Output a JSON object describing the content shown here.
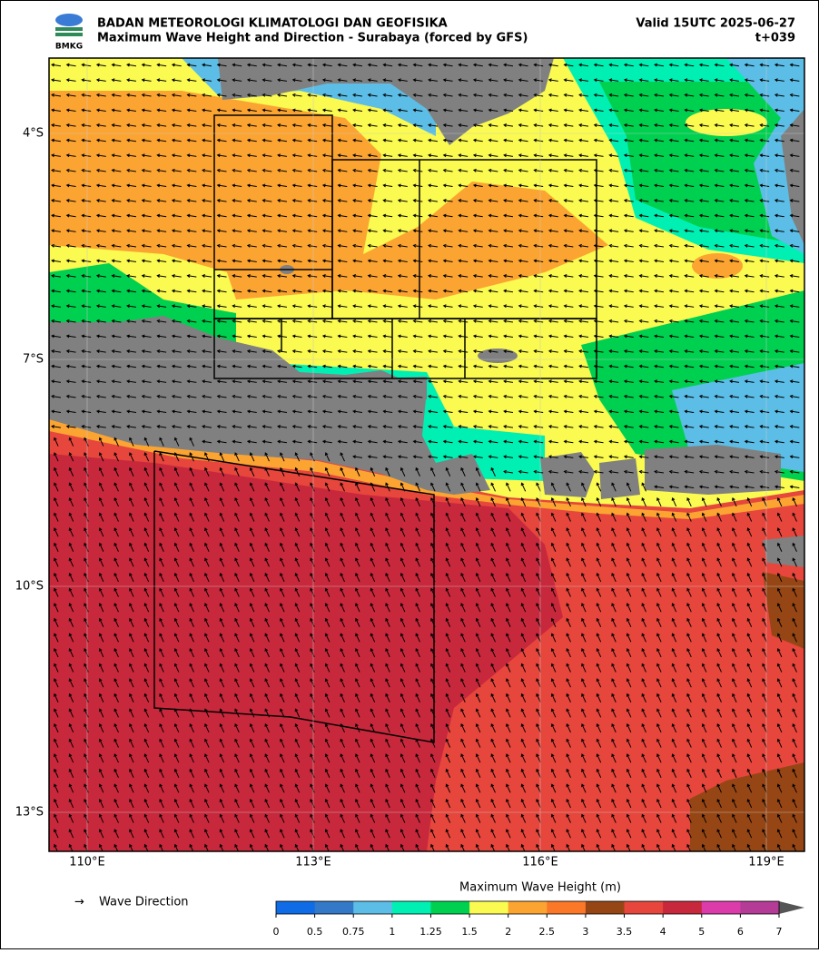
{
  "header": {
    "agency": "BADAN METEOROLOGI KLIMATOLOGI DAN GEOFISIKA",
    "title": "Maximum Wave Height and Direction - Surabaya (forced by GFS)",
    "valid": "Valid 15UTC 2025-06-27",
    "lead": "t+039",
    "logo": "BMKG"
  },
  "map": {
    "lat_labels": [
      "4°S",
      "7°S",
      "10°S",
      "13°S"
    ],
    "lon_labels": [
      "110°E",
      "113°E",
      "116°E",
      "119°E"
    ]
  },
  "legend": {
    "symbol": "→",
    "label": "Wave Direction"
  },
  "colorbar": {
    "title": "Maximum Wave Height (m)",
    "ticks": [
      0,
      0.5,
      0.75,
      1,
      1.25,
      1.5,
      2,
      2.5,
      3,
      3.5,
      4,
      5,
      6,
      7
    ],
    "colors": [
      "#0f6ce6",
      "#3478c8",
      "#5cbde6",
      "#00f0b4",
      "#00d050",
      "#fafa50",
      "#fca432",
      "#fa7828",
      "#964614",
      "#e6463c",
      "#c8283c",
      "#dc3caa",
      "#b43c96"
    ],
    "extend_color": "#555555"
  }
}
